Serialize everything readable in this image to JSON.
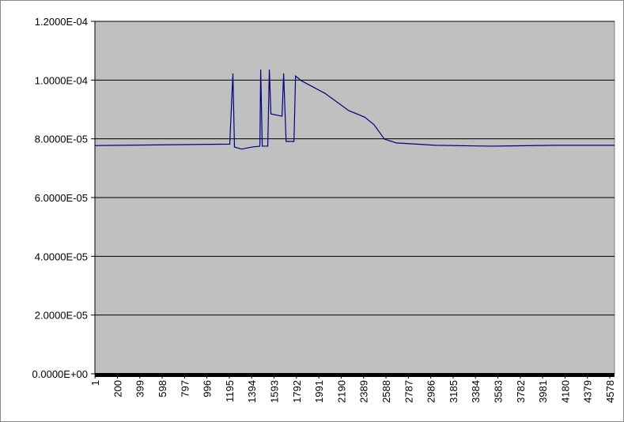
{
  "chart_data": {
    "type": "line",
    "x": [
      0,
      1199,
      1227,
      1241,
      1305,
      1396,
      1467,
      1474,
      1488,
      1537,
      1551,
      1565,
      1664,
      1678,
      1700,
      1770,
      1784,
      1834,
      2045,
      2257,
      2398,
      2482,
      2574,
      2680,
      3033,
      3526,
      4090,
      4620
    ],
    "series": [
      {
        "color": "#000080",
        "values": [
          7.77e-05,
          7.82e-05,
          0.00010225,
          7.72e-05,
          7.65e-05,
          7.72e-05,
          7.75e-05,
          0.0001036,
          7.75e-05,
          7.75e-05,
          0.0001036,
          8.85e-05,
          8.77e-05,
          0.00010225,
          7.91e-05,
          7.91e-05,
          0.0001014,
          9.98e-05,
          9.55e-05,
          8.96e-05,
          8.74e-05,
          8.48e-05,
          7.99e-05,
          7.86e-05,
          7.78e-05,
          7.75e-05,
          7.78e-05,
          7.78e-05
        ]
      }
    ],
    "xlim": [
      0,
      4620
    ],
    "xticks": [
      1,
      200,
      399,
      598,
      797,
      996,
      1195,
      1394,
      1593,
      1792,
      1991,
      2190,
      2389,
      2588,
      2787,
      2986,
      3185,
      3384,
      3583,
      3782,
      3981,
      4180,
      4379,
      4578
    ],
    "ylim": [
      0,
      0.00012
    ],
    "yticks": [
      {
        "value": 0,
        "label": "0.0000E+00"
      },
      {
        "value": 2e-05,
        "label": "2.0000E-05"
      },
      {
        "value": 4e-05,
        "label": "4.0000E-05"
      },
      {
        "value": 6e-05,
        "label": "6.0000E-05"
      },
      {
        "value": 8e-05,
        "label": "8.0000E-05"
      },
      {
        "value": 0.0001,
        "label": "1.0000E-04"
      },
      {
        "value": 0.00012,
        "label": "1.2000E-04"
      }
    ],
    "grid": true,
    "plot_background": "#c0c0c0"
  }
}
